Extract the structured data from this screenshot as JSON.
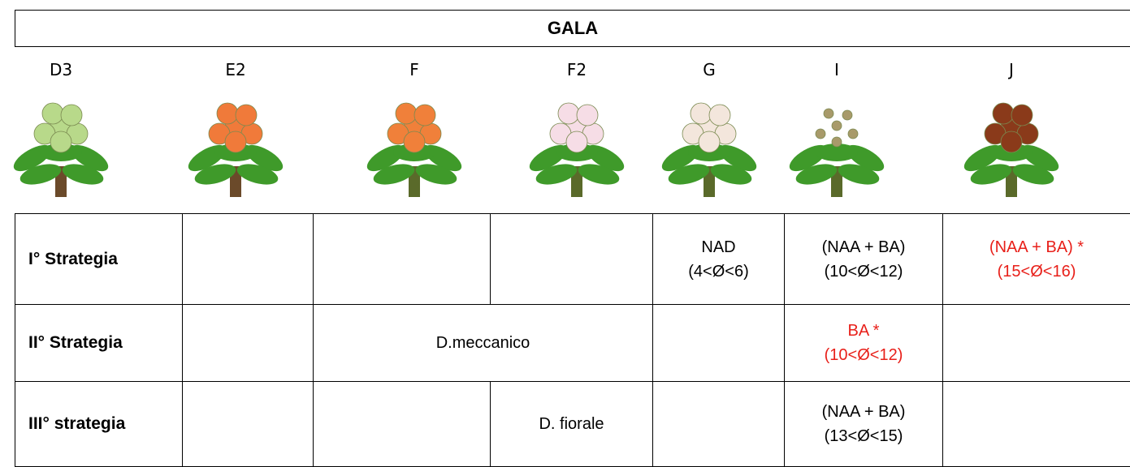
{
  "header": {
    "title": "GALA"
  },
  "stages": [
    "D3",
    "E2",
    "F",
    "F2",
    "G",
    "I",
    "J"
  ],
  "table": {
    "rows": [
      {
        "strategy": "I° Strategia",
        "entries": [
          [
            "NAD",
            "(4<Ø<6)"
          ],
          [
            "(NAA + BA)",
            "(10<Ø<12)"
          ],
          [
            "(NAA + BA) *",
            "(15<Ø<16)"
          ]
        ]
      },
      {
        "strategy": "II° Strategia",
        "entries": [
          [
            "D.meccanico"
          ],
          [
            "BA *",
            "(10<Ø<12)"
          ]
        ]
      },
      {
        "strategy": "III° strategia",
        "entries": [
          [
            "D. fiorale"
          ],
          [
            "(NAA + BA)",
            "(13<Ø<15)"
          ]
        ]
      }
    ]
  }
}
